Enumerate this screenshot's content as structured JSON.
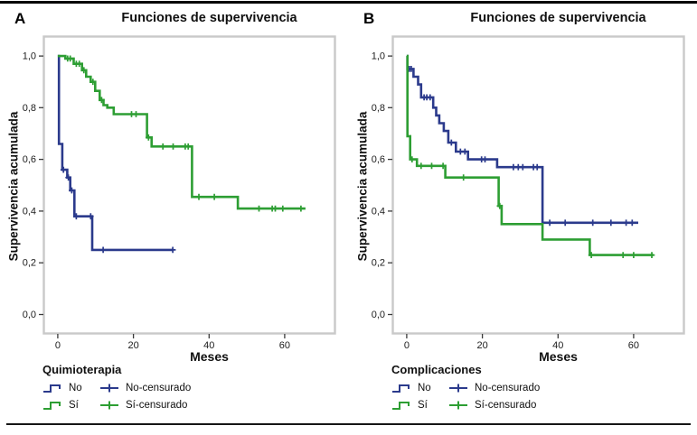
{
  "chart_data": [
    {
      "type": "line",
      "subtype": "kaplan_meier_step",
      "panel_label": "A",
      "title": "Funciones de supervivencia",
      "xlabel": "Meses",
      "ylabel": "Supervivencia acumulada",
      "x_ticks": [
        0,
        20,
        40,
        60
      ],
      "x_tick_labels": [
        "0",
        "20",
        "40",
        "60"
      ],
      "y_ticks": [
        1.0,
        0.8,
        0.6,
        0.4,
        0.2,
        0.0
      ],
      "y_tick_labels": [
        "1,0",
        "0,8",
        "0,6",
        "0,4",
        "0,2",
        "0,0"
      ],
      "xlim": [
        -3.8,
        73.4
      ],
      "ylim": [
        -0.075,
        1.077
      ],
      "grid": false,
      "legend_title": "Quimioterapia",
      "legend_position": "below",
      "series": [
        {
          "name": "No",
          "censored_name": "No-censurado",
          "color": "#2b3a8c",
          "steps": [
            [
              0,
              1.0
            ],
            [
              0.3,
              0.66
            ],
            [
              1.2,
              0.56
            ],
            [
              2.5,
              0.53
            ],
            [
              3.3,
              0.48
            ],
            [
              4.4,
              0.38
            ],
            [
              9.1,
              0.25
            ]
          ],
          "end_month": 30.6,
          "censors": [
            [
              1.5,
              0.56
            ],
            [
              2.8,
              0.53
            ],
            [
              3.7,
              0.48
            ],
            [
              4.9,
              0.38
            ],
            [
              8.7,
              0.38
            ],
            [
              12.0,
              0.25
            ],
            [
              30.4,
              0.25
            ]
          ]
        },
        {
          "name": "Sí",
          "censored_name": "Sí-censurado",
          "color": "#2d9e33",
          "steps": [
            [
              0,
              1.0
            ],
            [
              2.0,
              0.99
            ],
            [
              4.2,
              0.97
            ],
            [
              6.4,
              0.945
            ],
            [
              7.5,
              0.92
            ],
            [
              8.7,
              0.9
            ],
            [
              9.9,
              0.865
            ],
            [
              11.1,
              0.83
            ],
            [
              12.1,
              0.81
            ],
            [
              13.1,
              0.8
            ],
            [
              14.8,
              0.775
            ],
            [
              23.6,
              0.685
            ],
            [
              24.8,
              0.65
            ],
            [
              35.5,
              0.455
            ],
            [
              47.6,
              0.41
            ]
          ],
          "end_month": 65.5,
          "censors": [
            [
              2.6,
              0.99
            ],
            [
              3.3,
              0.99
            ],
            [
              4.9,
              0.97
            ],
            [
              5.7,
              0.97
            ],
            [
              6.9,
              0.945
            ],
            [
              9.3,
              0.9
            ],
            [
              11.6,
              0.83
            ],
            [
              19.5,
              0.775
            ],
            [
              20.7,
              0.775
            ],
            [
              24.0,
              0.685
            ],
            [
              27.8,
              0.65
            ],
            [
              30.5,
              0.65
            ],
            [
              33.7,
              0.65
            ],
            [
              34.5,
              0.65
            ],
            [
              37.3,
              0.455
            ],
            [
              41.4,
              0.455
            ],
            [
              53.2,
              0.41
            ],
            [
              56.7,
              0.41
            ],
            [
              57.5,
              0.41
            ],
            [
              59.5,
              0.41
            ],
            [
              64.3,
              0.41
            ]
          ]
        }
      ]
    },
    {
      "type": "line",
      "subtype": "kaplan_meier_step",
      "panel_label": "B",
      "title": "Funciones de supervivencia",
      "xlabel": "Meses",
      "ylabel": "Supervivencia acumulada",
      "x_ticks": [
        0,
        20,
        40,
        60
      ],
      "x_tick_labels": [
        "0",
        "20",
        "40",
        "60"
      ],
      "y_ticks": [
        1.0,
        0.8,
        0.6,
        0.4,
        0.2,
        0.0
      ],
      "y_tick_labels": [
        "1,0",
        "0,8",
        "0,6",
        "0,4",
        "0,2",
        "0,0"
      ],
      "xlim": [
        -3.8,
        73.4
      ],
      "ylim": [
        -0.075,
        1.077
      ],
      "grid": false,
      "legend_title": "Complicaciones",
      "legend_position": "below",
      "series": [
        {
          "name": "No",
          "censored_name": "No-censurado",
          "color": "#2b3a8c",
          "steps": [
            [
              0,
              1.0
            ],
            [
              0.2,
              0.95
            ],
            [
              1.8,
              0.92
            ],
            [
              3.0,
              0.89
            ],
            [
              3.8,
              0.84
            ],
            [
              7.0,
              0.8
            ],
            [
              7.8,
              0.77
            ],
            [
              8.6,
              0.74
            ],
            [
              9.8,
              0.71
            ],
            [
              11.0,
              0.665
            ],
            [
              13.0,
              0.63
            ],
            [
              16.2,
              0.6
            ],
            [
              23.9,
              0.57
            ],
            [
              35.9,
              0.355
            ]
          ],
          "end_month": 61.2,
          "censors": [
            [
              0.7,
              0.95
            ],
            [
              1.2,
              0.95
            ],
            [
              4.6,
              0.84
            ],
            [
              5.3,
              0.84
            ],
            [
              6.2,
              0.84
            ],
            [
              11.8,
              0.665
            ],
            [
              14.2,
              0.63
            ],
            [
              15.4,
              0.63
            ],
            [
              19.8,
              0.6
            ],
            [
              20.7,
              0.6
            ],
            [
              28.2,
              0.57
            ],
            [
              29.5,
              0.57
            ],
            [
              30.7,
              0.57
            ],
            [
              33.5,
              0.57
            ],
            [
              34.5,
              0.57
            ],
            [
              37.8,
              0.355
            ],
            [
              41.9,
              0.355
            ],
            [
              49.2,
              0.355
            ],
            [
              54.0,
              0.355
            ],
            [
              58.0,
              0.355
            ],
            [
              59.6,
              0.355
            ]
          ]
        },
        {
          "name": "Sí",
          "censored_name": "Sí-censurado",
          "color": "#2d9e33",
          "steps": [
            [
              0,
              1.0
            ],
            [
              0.2,
              0.69
            ],
            [
              0.9,
              0.6
            ],
            [
              2.7,
              0.575
            ],
            [
              10.2,
              0.53
            ],
            [
              24.3,
              0.42
            ],
            [
              25.1,
              0.35
            ],
            [
              35.9,
              0.29
            ],
            [
              48.4,
              0.23
            ]
          ],
          "end_month": 65.2,
          "censors": [
            [
              1.4,
              0.6
            ],
            [
              3.8,
              0.575
            ],
            [
              6.6,
              0.575
            ],
            [
              9.6,
              0.575
            ],
            [
              15.0,
              0.53
            ],
            [
              24.6,
              0.42
            ],
            [
              48.8,
              0.23
            ],
            [
              57.2,
              0.23
            ],
            [
              60.0,
              0.23
            ],
            [
              64.8,
              0.23
            ]
          ]
        }
      ]
    }
  ]
}
